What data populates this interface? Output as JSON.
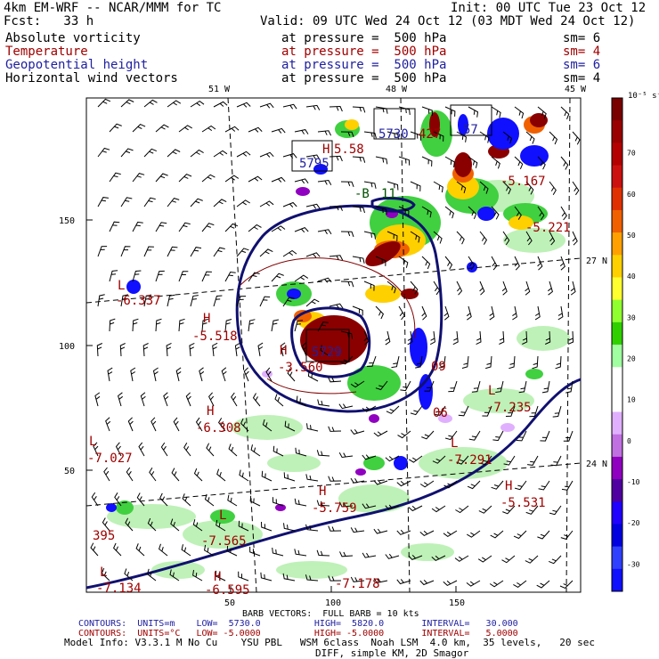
{
  "header": {
    "model": "4km EM-WRF -- NCAR/MMM for TC",
    "init": "Init: 00 UTC Tue 23 Oct 12",
    "fcst": "Fcst:   33 h",
    "valid": "Valid: 09 UTC Wed 24 Oct 12 (03 MDT Wed 24 Oct 12)"
  },
  "fields": [
    {
      "name": "Absolute vorticity",
      "pressure": "at pressure =  500 hPa",
      "sm": "sm= 6",
      "color": "#000000"
    },
    {
      "name": "Temperature",
      "pressure": "at pressure =  500 hPa",
      "sm": "sm= 4",
      "color": "#a00000"
    },
    {
      "name": "Geopotential height",
      "pressure": "at pressure =  500 hPa",
      "sm": "sm= 6",
      "color": "#2020a0"
    },
    {
      "name": "Horizontal wind vectors",
      "pressure": "at pressure =  500 hPa",
      "sm": "sm= 4",
      "color": "#000000"
    }
  ],
  "map": {
    "lon_labels": [
      "51 W",
      "48 W",
      "45 W"
    ],
    "lat_labels": [
      "27 N",
      "24 N"
    ],
    "x_ticks": [
      "50",
      "100",
      "150"
    ],
    "y_ticks": [
      "150",
      "100",
      "50"
    ]
  },
  "colorbar": {
    "unit": "10⁻⁵ s⁻¹",
    "labels": [
      "70",
      "60",
      "50",
      "40",
      "30",
      "20",
      "10",
      "0",
      "-10",
      "-20",
      "-30"
    ],
    "colors": [
      "#7a0000",
      "#9a0000",
      "#b40000",
      "#cc1010",
      "#e03000",
      "#f06000",
      "#ffa000",
      "#ffd000",
      "#ffff30",
      "#90ff30",
      "#30d000",
      "#a0ffa0",
      "#ffffff",
      "#ffffff",
      "#e0b0ff",
      "#c070e0",
      "#9000c0",
      "#5000a0",
      "#2000ff",
      "#0000e0",
      "#3040ff",
      "#1010ff"
    ]
  },
  "map_labels": {
    "highs_lows": [
      {
        "text": "H",
        "color": "#a00000"
      },
      {
        "text": "5.58",
        "color": "#a00000"
      },
      {
        "text": "5795",
        "color": "#2020a0"
      },
      {
        "text": "5730",
        "color": "#2020a0"
      },
      {
        "text": "427",
        "color": "#a00000"
      },
      {
        "text": "57",
        "color": "#2020a0"
      },
      {
        "text": "-B",
        "color": "#005000"
      },
      {
        "text": "11",
        "color": "#005000"
      },
      {
        "text": "-5.167",
        "color": "#a00000"
      },
      {
        "text": "-5.221",
        "color": "#a00000"
      },
      {
        "text": "L",
        "color": "#a00000"
      },
      {
        "text": "-6.337",
        "color": "#a00000"
      },
      {
        "text": "H",
        "color": "#a00000"
      },
      {
        "text": "-5.518",
        "color": "#a00000"
      },
      {
        "text": "H",
        "color": "#a00000"
      },
      {
        "text": "-3.560",
        "color": "#a00000"
      },
      {
        "text": "5729",
        "color": "#2020a0"
      },
      {
        "text": "09",
        "color": "#a00000"
      },
      {
        "text": "06",
        "color": "#a00000"
      },
      {
        "text": "L",
        "color": "#a00000"
      },
      {
        "text": "-7.235",
        "color": "#a00000"
      },
      {
        "text": "H",
        "color": "#a00000"
      },
      {
        "text": "-6.308",
        "color": "#a00000"
      },
      {
        "text": "L",
        "color": "#a00000"
      },
      {
        "text": "-7.027",
        "color": "#a00000"
      },
      {
        "text": "L",
        "color": "#a00000"
      },
      {
        "text": "-7.291",
        "color": "#a00000"
      },
      {
        "text": "H",
        "color": "#a00000"
      },
      {
        "text": "-5.759",
        "color": "#a00000"
      },
      {
        "text": "H",
        "color": "#a00000"
      },
      {
        "text": "-5.531",
        "color": "#a00000"
      },
      {
        "text": "395",
        "color": "#a00000"
      },
      {
        "text": "L",
        "color": "#a00000"
      },
      {
        "text": "-7.565",
        "color": "#a00000"
      },
      {
        "text": "L",
        "color": "#a00000"
      },
      {
        "text": "-7.134",
        "color": "#a00000"
      },
      {
        "text": "H",
        "color": "#a00000"
      },
      {
        "text": "-6.595",
        "color": "#a00000"
      },
      {
        "text": "-7.178",
        "color": "#a00000"
      }
    ]
  },
  "footer": {
    "barb": "BARB VECTORS:  FULL BARB = 10 kts",
    "contours1": "CONTOURS:  UNITS=m    LOW=  5730.0          HIGH=  5820.0       INTERVAL=   30.000",
    "contours2": "CONTOURS:  UNITS=°C   LOW= -5.0000          HIGH= -5.0000       INTERVAL=   5.0000",
    "model_info": "Model Info: V3.3.1 M No Cu    YSU PBL   WSM 6class  Noah LSM  4.0 km,  35 levels,   20 sec",
    "diff": "DIFF, simple KM, 2D Smagor"
  }
}
